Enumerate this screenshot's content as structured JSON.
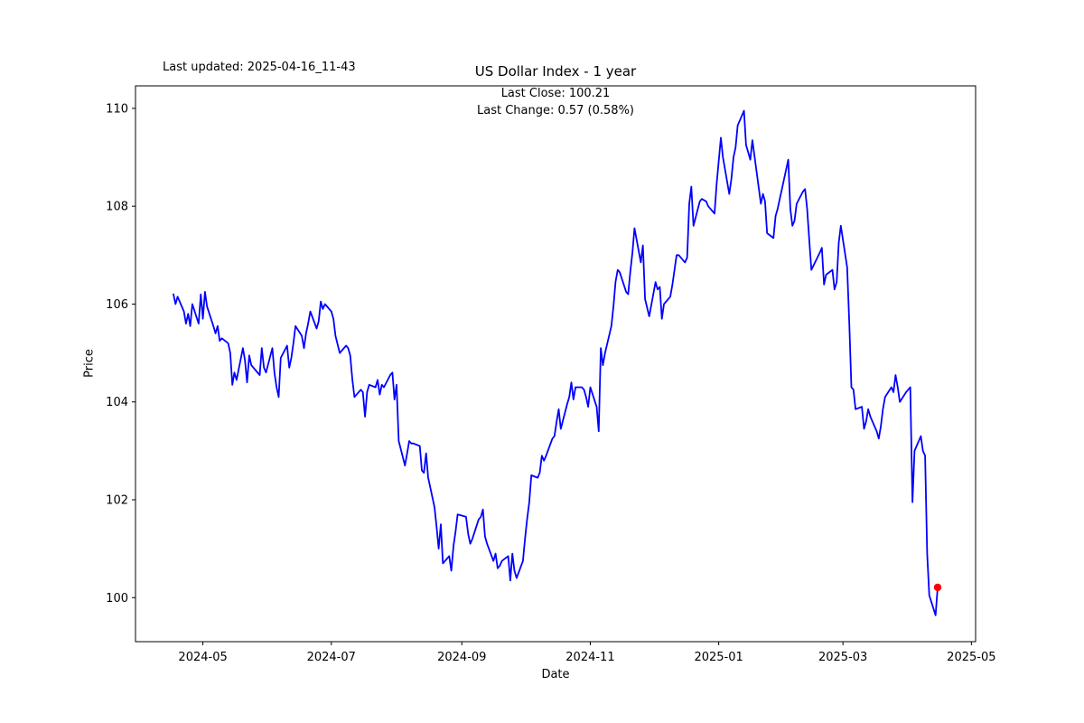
{
  "figure": {
    "last_updated": "Last updated: 2025-04-16_11-43",
    "title": "US Dollar Index - 1 year",
    "annotation": {
      "line1": "Last Close: 100.21",
      "line2": "Last Change: 0.57 (0.58%)"
    },
    "xlabel": "Date",
    "ylabel": "Price"
  },
  "chart_data": {
    "type": "line",
    "title": "US Dollar Index - 1 year",
    "xlabel": "Date",
    "ylabel": "Price",
    "grid": false,
    "legend": "none",
    "line_color": "#0000ff",
    "marker_color": "#ff0000",
    "last_close": 100.21,
    "last_change_text": "0.57 (0.58%)",
    "xlim": [
      "2024-03-30",
      "2025-05-03"
    ],
    "ylim": [
      99.1,
      110.46
    ],
    "y_ticks": [
      100,
      102,
      104,
      106,
      108,
      110
    ],
    "x_ticks": [
      {
        "value": "2024-05-01",
        "label": "2024-05"
      },
      {
        "value": "2024-07-01",
        "label": "2024-07"
      },
      {
        "value": "2024-09-01",
        "label": "2024-09"
      },
      {
        "value": "2024-11-01",
        "label": "2024-11"
      },
      {
        "value": "2025-01-01",
        "label": "2025-01"
      },
      {
        "value": "2025-03-01",
        "label": "2025-03"
      },
      {
        "value": "2025-05-01",
        "label": "2025-05"
      }
    ],
    "dates": [
      "2024-04-17",
      "2024-04-18",
      "2024-04-19",
      "2024-04-22",
      "2024-04-23",
      "2024-04-24",
      "2024-04-25",
      "2024-04-26",
      "2024-04-29",
      "2024-04-30",
      "2024-05-01",
      "2024-05-02",
      "2024-05-03",
      "2024-05-06",
      "2024-05-07",
      "2024-05-08",
      "2024-05-09",
      "2024-05-10",
      "2024-05-13",
      "2024-05-14",
      "2024-05-15",
      "2024-05-16",
      "2024-05-17",
      "2024-05-20",
      "2024-05-21",
      "2024-05-22",
      "2024-05-23",
      "2024-05-24",
      "2024-05-28",
      "2024-05-29",
      "2024-05-30",
      "2024-05-31",
      "2024-06-03",
      "2024-06-04",
      "2024-06-05",
      "2024-06-06",
      "2024-06-07",
      "2024-06-10",
      "2024-06-11",
      "2024-06-12",
      "2024-06-13",
      "2024-06-14",
      "2024-06-17",
      "2024-06-18",
      "2024-06-19",
      "2024-06-20",
      "2024-06-21",
      "2024-06-24",
      "2024-06-25",
      "2024-06-26",
      "2024-06-27",
      "2024-06-28",
      "2024-07-01",
      "2024-07-02",
      "2024-07-03",
      "2024-07-05",
      "2024-07-08",
      "2024-07-09",
      "2024-07-10",
      "2024-07-11",
      "2024-07-12",
      "2024-07-15",
      "2024-07-16",
      "2024-07-17",
      "2024-07-18",
      "2024-07-19",
      "2024-07-22",
      "2024-07-23",
      "2024-07-24",
      "2024-07-25",
      "2024-07-26",
      "2024-07-29",
      "2024-07-30",
      "2024-07-31",
      "2024-08-01",
      "2024-08-02",
      "2024-08-05",
      "2024-08-06",
      "2024-08-07",
      "2024-08-08",
      "2024-08-09",
      "2024-08-12",
      "2024-08-13",
      "2024-08-14",
      "2024-08-15",
      "2024-08-16",
      "2024-08-19",
      "2024-08-20",
      "2024-08-21",
      "2024-08-22",
      "2024-08-23",
      "2024-08-26",
      "2024-08-27",
      "2024-08-28",
      "2024-08-29",
      "2024-08-30",
      "2024-09-03",
      "2024-09-04",
      "2024-09-05",
      "2024-09-06",
      "2024-09-09",
      "2024-09-10",
      "2024-09-11",
      "2024-09-12",
      "2024-09-13",
      "2024-09-16",
      "2024-09-17",
      "2024-09-18",
      "2024-09-19",
      "2024-09-20",
      "2024-09-23",
      "2024-09-24",
      "2024-09-25",
      "2024-09-26",
      "2024-09-27",
      "2024-09-30",
      "2024-10-01",
      "2024-10-02",
      "2024-10-03",
      "2024-10-04",
      "2024-10-07",
      "2024-10-08",
      "2024-10-09",
      "2024-10-10",
      "2024-10-11",
      "2024-10-14",
      "2024-10-15",
      "2024-10-16",
      "2024-10-17",
      "2024-10-18",
      "2024-10-21",
      "2024-10-22",
      "2024-10-23",
      "2024-10-24",
      "2024-10-25",
      "2024-10-28",
      "2024-10-29",
      "2024-10-30",
      "2024-10-31",
      "2024-11-01",
      "2024-11-04",
      "2024-11-05",
      "2024-11-06",
      "2024-11-07",
      "2024-11-08",
      "2024-11-11",
      "2024-11-12",
      "2024-11-13",
      "2024-11-14",
      "2024-11-15",
      "2024-11-18",
      "2024-11-19",
      "2024-11-20",
      "2024-11-21",
      "2024-11-22",
      "2024-11-25",
      "2024-11-26",
      "2024-11-27",
      "2024-11-29",
      "2024-12-02",
      "2024-12-03",
      "2024-12-04",
      "2024-12-05",
      "2024-12-06",
      "2024-12-09",
      "2024-12-10",
      "2024-12-11",
      "2024-12-12",
      "2024-12-13",
      "2024-12-16",
      "2024-12-17",
      "2024-12-18",
      "2024-12-19",
      "2024-12-20",
      "2024-12-23",
      "2024-12-24",
      "2024-12-26",
      "2024-12-27",
      "2024-12-30",
      "2024-12-31",
      "2025-01-02",
      "2025-01-03",
      "2025-01-06",
      "2025-01-07",
      "2025-01-08",
      "2025-01-09",
      "2025-01-10",
      "2025-01-13",
      "2025-01-14",
      "2025-01-15",
      "2025-01-16",
      "2025-01-17",
      "2025-01-21",
      "2025-01-22",
      "2025-01-23",
      "2025-01-24",
      "2025-01-27",
      "2025-01-28",
      "2025-01-29",
      "2025-01-30",
      "2025-01-31",
      "2025-02-03",
      "2025-02-04",
      "2025-02-05",
      "2025-02-06",
      "2025-02-07",
      "2025-02-10",
      "2025-02-11",
      "2025-02-12",
      "2025-02-13",
      "2025-02-14",
      "2025-02-18",
      "2025-02-19",
      "2025-02-20",
      "2025-02-21",
      "2025-02-24",
      "2025-02-25",
      "2025-02-26",
      "2025-02-27",
      "2025-02-28",
      "2025-03-03",
      "2025-03-04",
      "2025-03-05",
      "2025-03-06",
      "2025-03-07",
      "2025-03-10",
      "2025-03-11",
      "2025-03-12",
      "2025-03-13",
      "2025-03-14",
      "2025-03-17",
      "2025-03-18",
      "2025-03-19",
      "2025-03-20",
      "2025-03-21",
      "2025-03-24",
      "2025-03-25",
      "2025-03-26",
      "2025-03-27",
      "2025-03-28",
      "2025-03-31",
      "2025-04-01",
      "2025-04-02",
      "2025-04-03",
      "2025-04-04",
      "2025-04-07",
      "2025-04-08",
      "2025-04-09",
      "2025-04-10",
      "2025-04-11",
      "2025-04-14",
      "2025-04-15"
    ],
    "values": [
      106.2,
      106.0,
      106.15,
      105.85,
      105.6,
      105.8,
      105.55,
      106.0,
      105.6,
      106.2,
      105.7,
      106.25,
      105.95,
      105.55,
      105.4,
      105.55,
      105.25,
      105.3,
      105.2,
      105.0,
      104.35,
      104.6,
      104.45,
      105.1,
      104.85,
      104.4,
      104.95,
      104.75,
      104.55,
      105.1,
      104.7,
      104.6,
      105.1,
      104.6,
      104.3,
      104.1,
      104.9,
      105.15,
      104.7,
      104.9,
      105.2,
      105.55,
      105.35,
      105.1,
      105.4,
      105.6,
      105.85,
      105.5,
      105.65,
      106.05,
      105.9,
      106.0,
      105.85,
      105.7,
      105.35,
      105.0,
      105.15,
      105.1,
      104.95,
      104.45,
      104.1,
      104.25,
      104.2,
      103.7,
      104.2,
      104.35,
      104.3,
      104.45,
      104.15,
      104.35,
      104.3,
      104.55,
      104.6,
      104.05,
      104.35,
      103.2,
      102.7,
      102.95,
      103.2,
      103.15,
      103.15,
      103.1,
      102.6,
      102.55,
      102.95,
      102.45,
      101.85,
      101.45,
      101.0,
      101.5,
      100.7,
      100.85,
      100.55,
      101.05,
      101.35,
      101.7,
      101.65,
      101.3,
      101.1,
      101.2,
      101.6,
      101.65,
      101.8,
      101.25,
      101.1,
      100.75,
      100.9,
      100.6,
      100.65,
      100.75,
      100.85,
      100.35,
      100.9,
      100.55,
      100.4,
      100.75,
      101.2,
      101.6,
      101.95,
      102.5,
      102.45,
      102.55,
      102.9,
      102.8,
      102.9,
      103.25,
      103.3,
      103.6,
      103.85,
      103.45,
      103.95,
      104.1,
      104.4,
      104.05,
      104.3,
      104.3,
      104.25,
      104.1,
      103.9,
      104.3,
      103.9,
      103.4,
      105.1,
      104.75,
      105.0,
      105.55,
      105.95,
      106.45,
      106.7,
      106.65,
      106.25,
      106.2,
      106.65,
      107.05,
      107.55,
      106.85,
      107.2,
      106.1,
      105.75,
      106.45,
      106.3,
      106.35,
      105.7,
      106.0,
      106.15,
      106.4,
      106.7,
      107.0,
      107.0,
      106.85,
      106.95,
      108.05,
      108.4,
      107.6,
      108.1,
      108.15,
      108.1,
      108.0,
      107.85,
      108.45,
      109.4,
      109.0,
      108.25,
      108.55,
      109.0,
      109.2,
      109.65,
      109.95,
      109.25,
      109.1,
      108.95,
      109.35,
      108.05,
      108.25,
      108.1,
      107.45,
      107.35,
      107.8,
      107.95,
      108.15,
      108.35,
      108.95,
      107.95,
      107.6,
      107.7,
      108.05,
      108.3,
      108.35,
      107.95,
      107.3,
      106.7,
      107.05,
      107.15,
      106.4,
      106.6,
      106.7,
      106.3,
      106.45,
      107.25,
      107.6,
      106.75,
      105.6,
      104.3,
      104.25,
      103.85,
      103.9,
      103.45,
      103.6,
      103.85,
      103.7,
      103.4,
      103.25,
      103.5,
      103.85,
      104.1,
      104.3,
      104.2,
      104.55,
      104.3,
      104.0,
      104.2,
      104.25,
      104.3,
      101.95,
      103.0,
      103.3,
      103.0,
      102.9,
      100.9,
      100.05,
      99.64,
      100.21
    ]
  }
}
